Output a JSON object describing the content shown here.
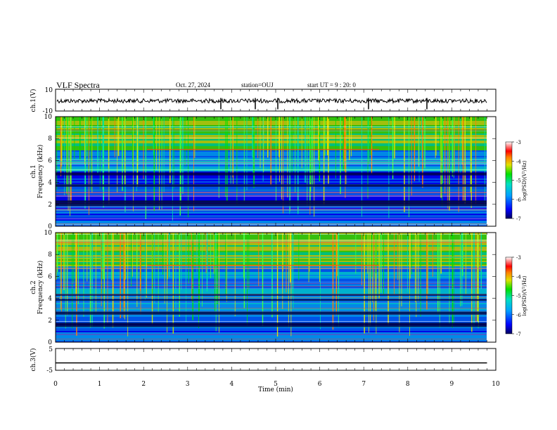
{
  "header": {
    "title": "VLF Spectra",
    "date": "Oct. 27, 2024",
    "station": "station=OUJ",
    "start_ut": "start  UT =   9 : 20: 0"
  },
  "chart_data": [
    {
      "type": "line",
      "title": "",
      "xlabel": "",
      "ylabel": "ch.1(V)",
      "ylim": [
        -10,
        10
      ],
      "yticks": [
        "10",
        "-10"
      ],
      "series": [
        {
          "values_description_free": true,
          "x": [
            0,
            10
          ],
          "y": [
            -0.2,
            -0.2
          ]
        }
      ]
    },
    {
      "type": "heatmap",
      "xlabel": "",
      "ylabel_line1": "ch.1",
      "ylabel_line2": "Frequency (kHz)",
      "xlim": [
        0,
        10
      ],
      "ylim": [
        0,
        10
      ],
      "yticks": [
        "0",
        "2",
        "4",
        "6",
        "8",
        "10"
      ],
      "colorbar": {
        "label": "log(PSD)(V²/Hz)",
        "range": [
          -7,
          -3
        ],
        "ticks": [
          "-3",
          "-4",
          "-5",
          "-6",
          "-7"
        ]
      }
    },
    {
      "type": "heatmap",
      "xlabel": "",
      "ylabel_line1": "ch.2",
      "ylabel_line2": "Frequency (kHz)",
      "xlim": [
        0,
        10
      ],
      "ylim": [
        0,
        10
      ],
      "yticks": [
        "0",
        "2",
        "4",
        "6",
        "8",
        "10"
      ],
      "colorbar": {
        "label": "log(PSD)(V²/Hz)",
        "range": [
          -7,
          -3
        ],
        "ticks": [
          "-3",
          "-4",
          "-5",
          "-6",
          "-7"
        ]
      }
    },
    {
      "type": "line",
      "xlabel": "Time (min)",
      "ylabel": "ch.3(V)",
      "ylim": [
        -5,
        5
      ],
      "yticks": [
        "5",
        "-5"
      ],
      "xticks": [
        "0",
        "1",
        "2",
        "3",
        "4",
        "5",
        "6",
        "7",
        "8",
        "9",
        "10"
      ],
      "series": [
        {
          "x": [
            0,
            9.8
          ],
          "y": [
            -1.6,
            -1.6
          ]
        }
      ]
    }
  ],
  "colors": {
    "scale": [
      "#0000ff",
      "#0090ff",
      "#00e0e0",
      "#00e000",
      "#e8e800",
      "#ff8000",
      "#ff0000",
      "#ff8080",
      "#ffffff"
    ]
  }
}
